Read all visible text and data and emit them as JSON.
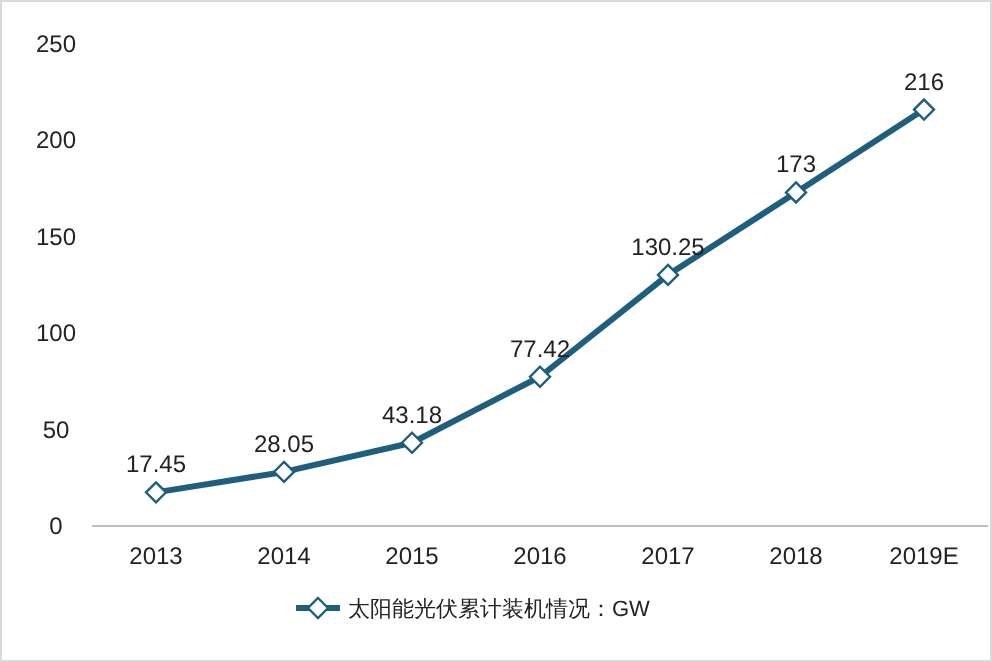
{
  "chart_data": {
    "type": "line",
    "categories": [
      "2013",
      "2014",
      "2015",
      "2016",
      "2017",
      "2018",
      "2019E"
    ],
    "series": [
      {
        "name": "太阳能光伏累计装机情况：GW",
        "color": "#1f5f7d",
        "values": [
          17.45,
          28.05,
          43.18,
          77.42,
          130.25,
          173,
          216
        ]
      }
    ],
    "ylim": [
      0,
      250
    ],
    "yticks": [
      0,
      50,
      100,
      150,
      200,
      250
    ],
    "data_labels": true,
    "legend": "bottom",
    "marker": "diamond",
    "grid": false
  }
}
